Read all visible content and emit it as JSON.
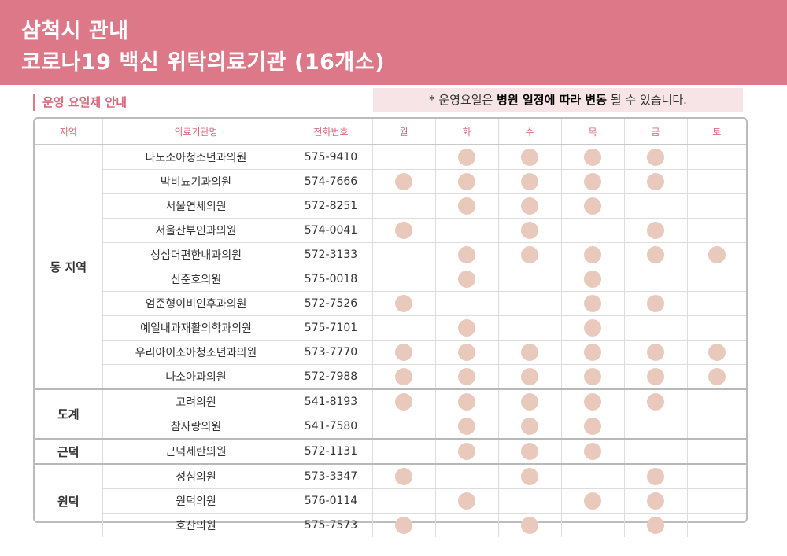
{
  "header": {
    "title_line1": "삼척시 관내",
    "title_line2": "코로나19 백신 위탁의료기관 (16개소)"
  },
  "section_label": "운영 요일제 안내",
  "note": {
    "prefix": "* 운영요일은 ",
    "bold1": "병원 일정에 따라 변동",
    "suffix": " 될 수 있습니다."
  },
  "table": {
    "columns": [
      "지역",
      "의료기관명",
      "전화번호",
      "월",
      "화",
      "수",
      "목",
      "금",
      "토"
    ],
    "groups": [
      {
        "region": "동 지역",
        "rows": [
          {
            "name": "나노소아청소년과의원",
            "phone": "575-9410",
            "days": [
              false,
              true,
              true,
              true,
              true,
              false
            ]
          },
          {
            "name": "박비뇨기과의원",
            "phone": "574-7666",
            "days": [
              true,
              true,
              true,
              true,
              true,
              false
            ]
          },
          {
            "name": "서울연세의원",
            "phone": "572-8251",
            "days": [
              false,
              true,
              true,
              true,
              false,
              false
            ]
          },
          {
            "name": "서울산부인과의원",
            "phone": "574-0041",
            "days": [
              true,
              false,
              true,
              false,
              true,
              false
            ]
          },
          {
            "name": "성심더편한내과의원",
            "phone": "572-3133",
            "days": [
              false,
              true,
              true,
              true,
              true,
              true
            ]
          },
          {
            "name": "신준호의원",
            "phone": "575-0018",
            "days": [
              false,
              true,
              false,
              true,
              false,
              false
            ]
          },
          {
            "name": "엄준형이비인후과의원",
            "phone": "572-7526",
            "days": [
              true,
              false,
              false,
              true,
              true,
              false
            ]
          },
          {
            "name": "예일내과재활의학과의원",
            "phone": "575-7101",
            "days": [
              false,
              true,
              false,
              true,
              false,
              false
            ]
          },
          {
            "name": "우리아이소아청소년과의원",
            "phone": "573-7770",
            "days": [
              true,
              true,
              true,
              true,
              true,
              true
            ]
          },
          {
            "name": "나소아과의원",
            "phone": "572-7988",
            "days": [
              true,
              true,
              true,
              true,
              true,
              true
            ]
          }
        ]
      },
      {
        "region": "도계",
        "rows": [
          {
            "name": "고려의원",
            "phone": "541-8193",
            "days": [
              true,
              true,
              true,
              true,
              true,
              false
            ]
          },
          {
            "name": "참사랑의원",
            "phone": "541-7580",
            "days": [
              false,
              true,
              true,
              true,
              false,
              false
            ]
          }
        ]
      },
      {
        "region": "근덕",
        "rows": [
          {
            "name": "근덕세란의원",
            "phone": "572-1131",
            "days": [
              false,
              true,
              true,
              true,
              false,
              false
            ]
          }
        ]
      },
      {
        "region": "원덕",
        "rows": [
          {
            "name": "성심의원",
            "phone": "573-3347",
            "days": [
              true,
              false,
              true,
              false,
              true,
              false
            ]
          },
          {
            "name": "원덕의원",
            "phone": "576-0114",
            "days": [
              false,
              true,
              false,
              true,
              true,
              false
            ]
          },
          {
            "name": "호산의원",
            "phone": "575-7573",
            "days": [
              true,
              false,
              true,
              false,
              true,
              false
            ]
          }
        ]
      }
    ]
  },
  "colors": {
    "header": "#dc7888",
    "accent": "#d9697d",
    "dot": "#e8c9bc",
    "note_bg": "#f6e4e6"
  }
}
